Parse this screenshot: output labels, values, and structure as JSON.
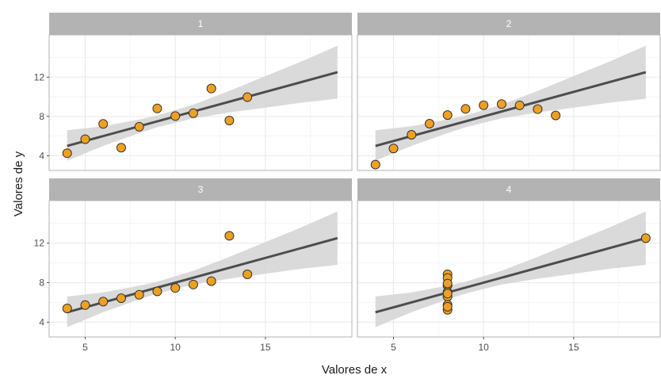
{
  "chart_data": {
    "type": "scatter",
    "xlabel": "Valores de x",
    "ylabel": "Valores de y",
    "xlim": [
      3,
      19.8
    ],
    "ylim": [
      2.5,
      16.3
    ],
    "x_ticks": [
      5,
      10,
      15
    ],
    "y_ticks": [
      4,
      8,
      12
    ],
    "grid": true,
    "colors": {
      "point_fill": "#f0a020",
      "point_stroke": "#333333",
      "line": "#4d4d4d",
      "band": "#d3d3d3",
      "strip": "#b3b3b3",
      "strip_text": "#ffffff",
      "grid": "#e8e8e8",
      "panel_border": "#b3b3b3"
    },
    "panels": [
      {
        "strip_label": "1",
        "x": [
          10,
          8,
          13,
          9,
          11,
          14,
          6,
          4,
          12,
          7,
          5
        ],
        "y": [
          8.04,
          6.95,
          7.58,
          8.81,
          8.33,
          9.96,
          7.24,
          4.26,
          10.84,
          4.82,
          5.68
        ],
        "fit": {
          "x_start": 4,
          "x_end": 19,
          "y_start": 5.0,
          "y_end": 12.5
        },
        "band": {
          "x": [
            4,
            6,
            8,
            9,
            11,
            13,
            15,
            17,
            19
          ],
          "lower": [
            3.5,
            5.0,
            6.3,
            6.9,
            7.8,
            8.4,
            8.9,
            9.4,
            9.8
          ],
          "upper": [
            6.6,
            7.0,
            7.7,
            8.1,
            9.2,
            10.6,
            12.1,
            13.6,
            15.2
          ]
        }
      },
      {
        "strip_label": "2",
        "x": [
          10,
          8,
          13,
          9,
          11,
          14,
          6,
          4,
          12,
          7,
          5
        ],
        "y": [
          9.14,
          8.14,
          8.74,
          8.77,
          9.26,
          8.1,
          6.13,
          3.1,
          9.13,
          7.26,
          4.74
        ],
        "fit": {
          "x_start": 4,
          "x_end": 19,
          "y_start": 5.0,
          "y_end": 12.5
        },
        "band": {
          "x": [
            4,
            6,
            8,
            9,
            11,
            13,
            15,
            17,
            19
          ],
          "lower": [
            3.5,
            5.0,
            6.3,
            6.9,
            7.8,
            8.4,
            8.9,
            9.4,
            9.8
          ],
          "upper": [
            6.6,
            7.0,
            7.7,
            8.1,
            9.2,
            10.6,
            12.1,
            13.6,
            15.2
          ]
        }
      },
      {
        "strip_label": "3",
        "x": [
          10,
          8,
          13,
          9,
          11,
          14,
          6,
          4,
          12,
          7,
          5
        ],
        "y": [
          7.46,
          6.77,
          12.74,
          7.11,
          7.81,
          8.84,
          6.08,
          5.39,
          8.15,
          6.42,
          5.73
        ],
        "fit": {
          "x_start": 4,
          "x_end": 19,
          "y_start": 5.0,
          "y_end": 12.5
        },
        "band": {
          "x": [
            4,
            6,
            8,
            9,
            11,
            13,
            15,
            17,
            19
          ],
          "lower": [
            3.5,
            5.0,
            6.3,
            6.9,
            7.8,
            8.4,
            8.9,
            9.4,
            9.8
          ],
          "upper": [
            6.6,
            7.0,
            7.7,
            8.1,
            9.2,
            10.6,
            12.1,
            13.6,
            15.2
          ]
        }
      },
      {
        "strip_label": "4",
        "x": [
          8,
          8,
          8,
          8,
          8,
          8,
          8,
          19,
          8,
          8,
          8
        ],
        "y": [
          6.58,
          5.76,
          7.71,
          8.84,
          8.47,
          7.04,
          5.25,
          12.5,
          5.56,
          7.91,
          6.89
        ],
        "fit": {
          "x_start": 4,
          "x_end": 19,
          "y_start": 5.0,
          "y_end": 12.5
        },
        "band": {
          "x": [
            4,
            6,
            8,
            9,
            11,
            13,
            15,
            17,
            19
          ],
          "lower": [
            3.5,
            5.0,
            6.3,
            6.9,
            7.8,
            8.4,
            8.9,
            9.4,
            9.8
          ],
          "upper": [
            6.6,
            7.0,
            7.7,
            8.1,
            9.2,
            10.6,
            12.1,
            13.6,
            15.2
          ]
        }
      }
    ]
  }
}
